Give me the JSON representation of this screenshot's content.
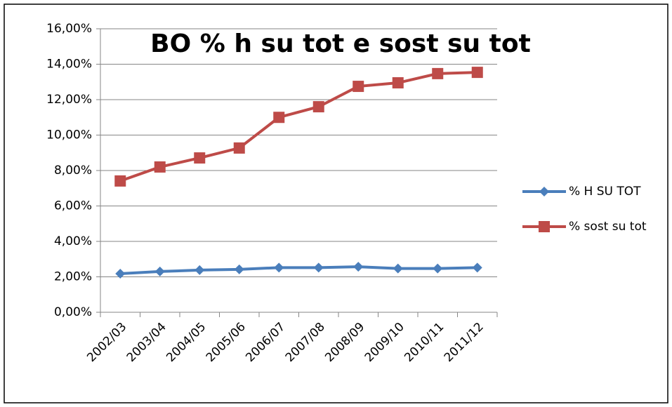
{
  "chart_data": {
    "type": "line",
    "title": "BO % h su tot e sost su tot",
    "categories": [
      "2002/03",
      "2003/04",
      "2004/05",
      "2005/06",
      "2006/07",
      "2007/08",
      "2008/09",
      "2009/10",
      "2010/11",
      "2011/12"
    ],
    "series": [
      {
        "name": "% H SU TOT",
        "color": "#4a7ebb",
        "marker": "diamond",
        "values": [
          2.18,
          2.3,
          2.38,
          2.42,
          2.52,
          2.52,
          2.57,
          2.47,
          2.47,
          2.52
        ]
      },
      {
        "name": "% sost su tot",
        "color": "#be4b48",
        "marker": "square",
        "values": [
          7.41,
          8.2,
          8.71,
          9.27,
          11.0,
          11.6,
          12.75,
          12.95,
          13.47,
          13.54
        ]
      }
    ],
    "ylim": [
      0,
      16
    ],
    "yticks": [
      {
        "value": 0,
        "label": "0,00%"
      },
      {
        "value": 2,
        "label": "2,00%"
      },
      {
        "value": 4,
        "label": "4,00%"
      },
      {
        "value": 6,
        "label": "6,00%"
      },
      {
        "value": 8,
        "label": "8,00%"
      },
      {
        "value": 10,
        "label": "10,00%"
      },
      {
        "value": 12,
        "label": "12,00%"
      },
      {
        "value": 14,
        "label": "14,00%"
      },
      {
        "value": 16,
        "label": "16,00%"
      }
    ],
    "grid": true,
    "legend": "right"
  }
}
